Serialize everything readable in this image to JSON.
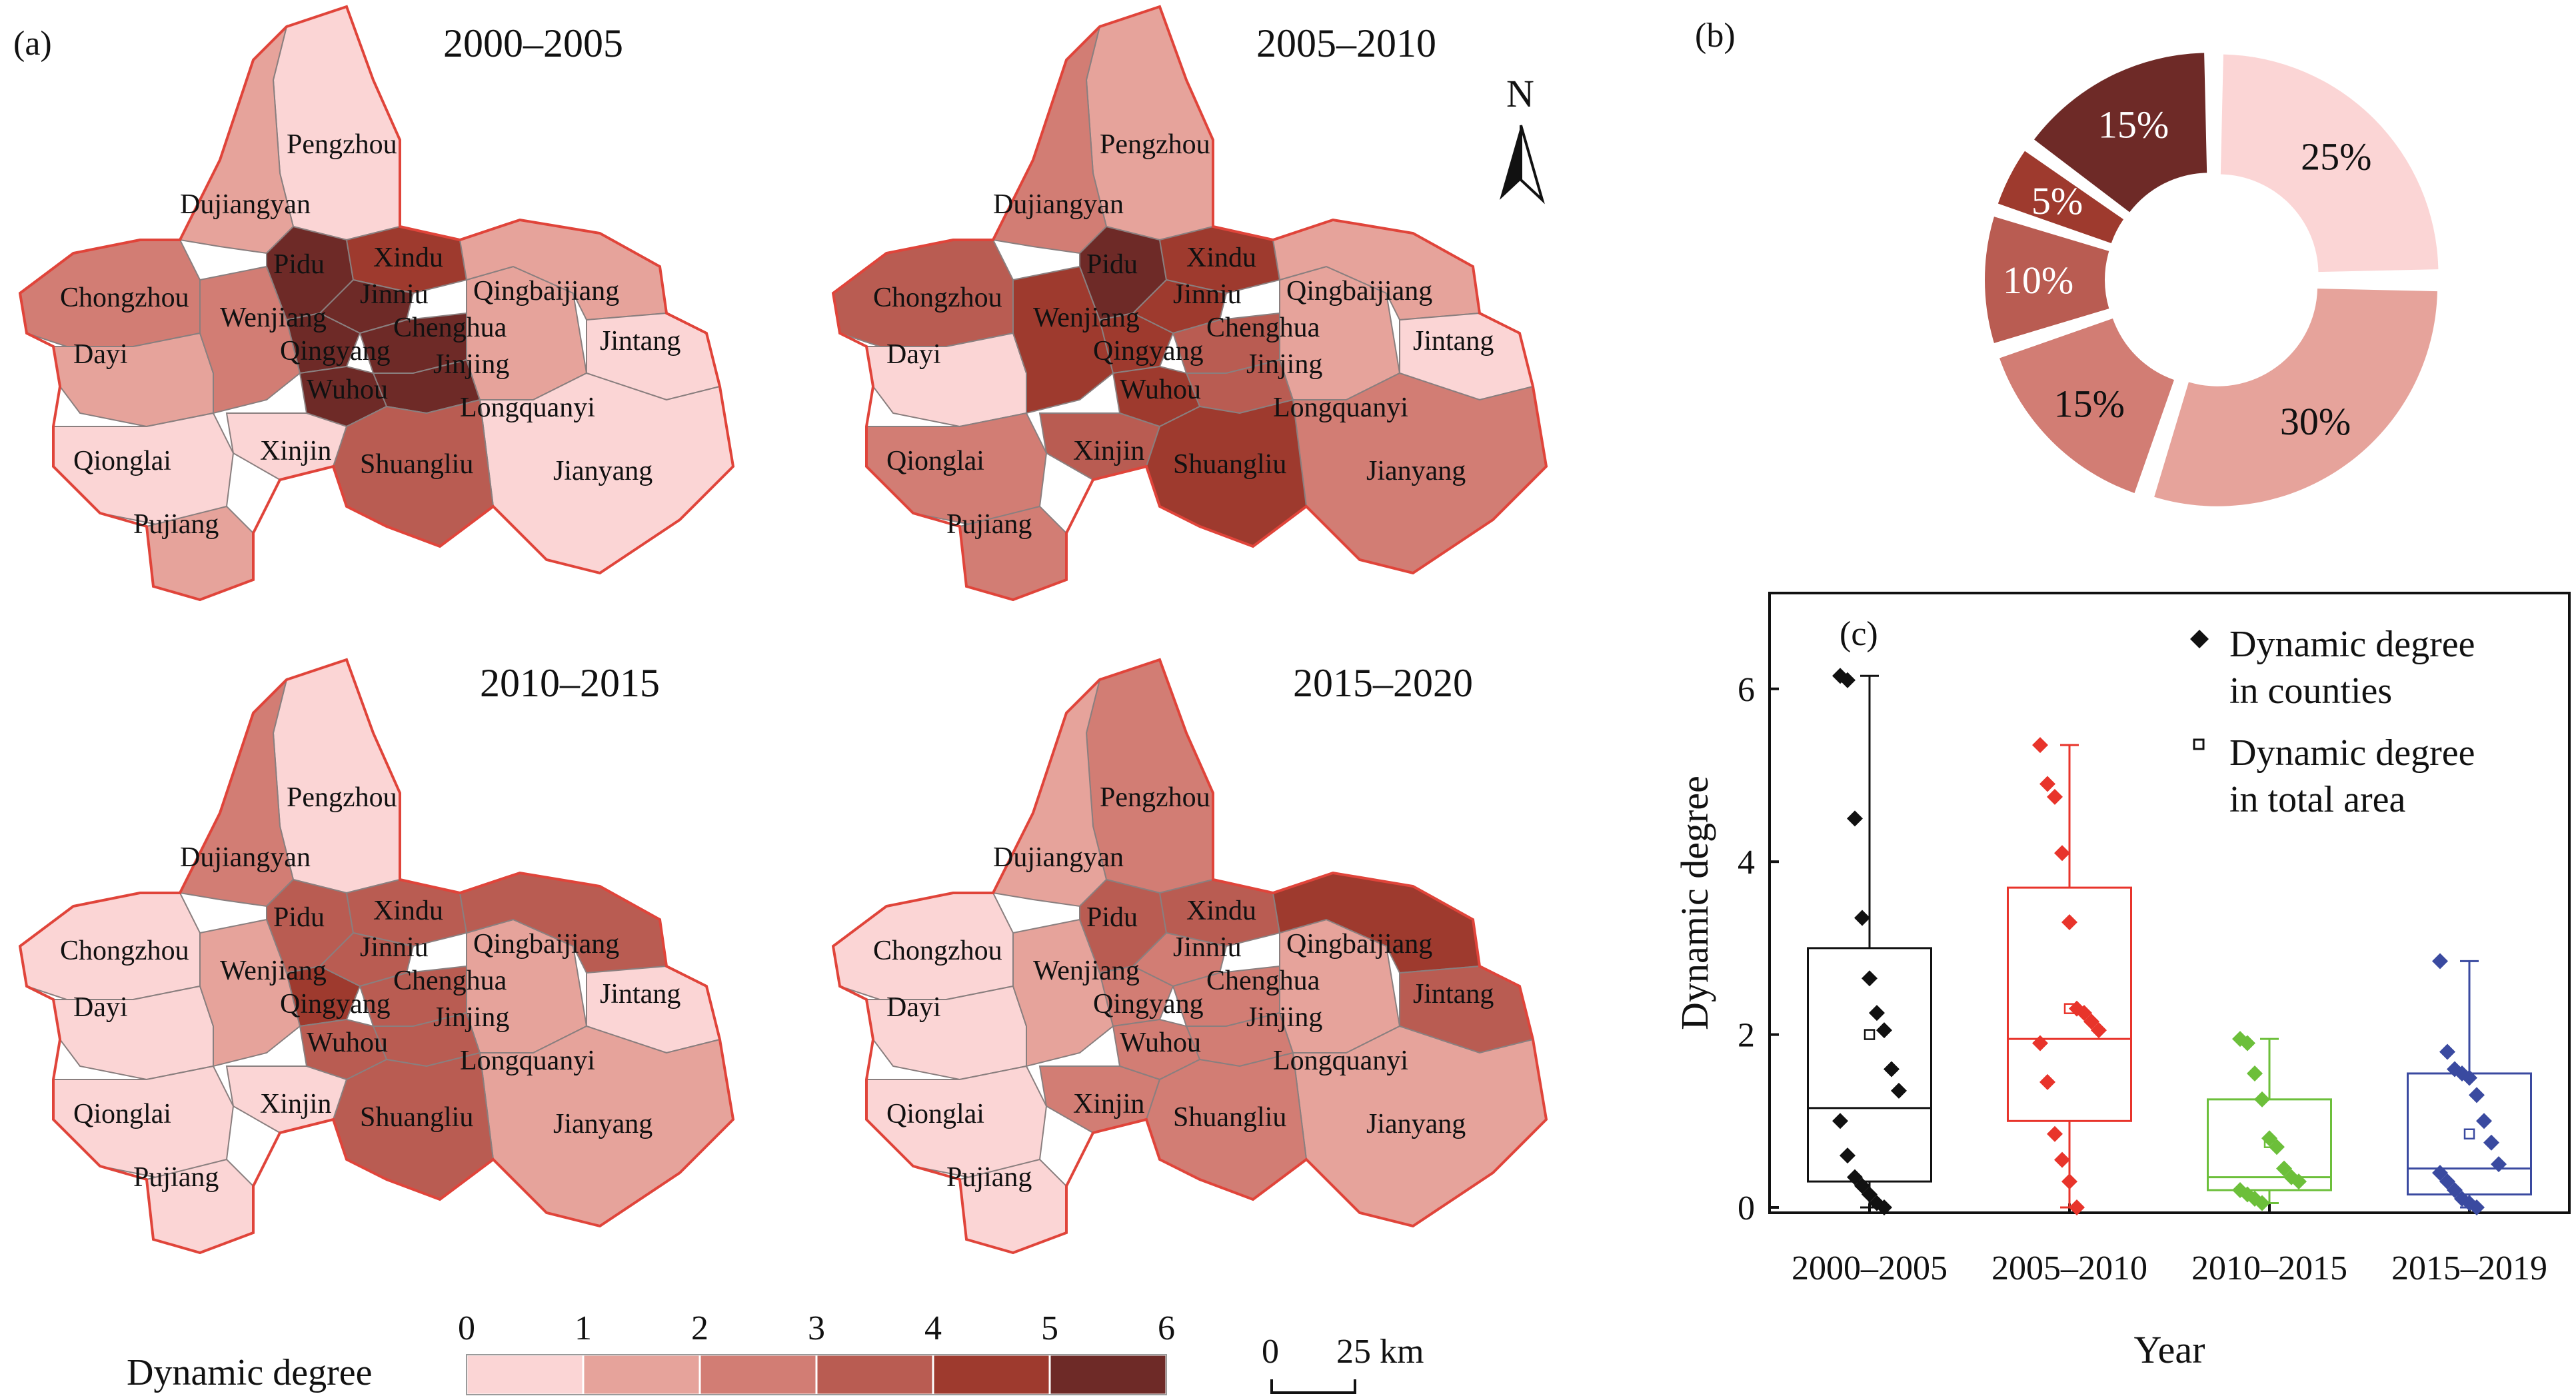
{
  "panel_a": {
    "label": "(a)",
    "maps": [
      {
        "title": "2000–2005",
        "classes": {
          "Pengzhou": 0,
          "Dujiangyan": 1,
          "Chongzhou": 2,
          "Dayi": 1,
          "Qionglai": 0,
          "Pujiang": 1,
          "Xinjin": 0,
          "Shuangliu": 3,
          "Wenjiang": 2,
          "Pidu": 5,
          "Xindu": 4,
          "Jinniu": 5,
          "Qingyang": 5,
          "Chenghua": 5,
          "Jinjing": 5,
          "Wuhou": 5,
          "Longquanyi": 1,
          "Qingbaijiang": 1,
          "Jintang": 0,
          "Jianyang": 0
        }
      },
      {
        "title": "2005–2010",
        "classes": {
          "Pengzhou": 1,
          "Dujiangyan": 2,
          "Chongzhou": 3,
          "Dayi": 0,
          "Qionglai": 2,
          "Pujiang": 2,
          "Xinjin": 3,
          "Shuangliu": 4,
          "Wenjiang": 4,
          "Pidu": 5,
          "Xindu": 4,
          "Jinniu": 4,
          "Qingyang": 4,
          "Chenghua": 3,
          "Jinjing": 3,
          "Wuhou": 4,
          "Longquanyi": 1,
          "Qingbaijiang": 1,
          "Jintang": 0,
          "Jianyang": 2
        }
      },
      {
        "title": "2010–2015",
        "classes": {
          "Pengzhou": 0,
          "Dujiangyan": 2,
          "Chongzhou": 0,
          "Dayi": 0,
          "Qionglai": 0,
          "Pujiang": 0,
          "Xinjin": 0,
          "Shuangliu": 3,
          "Wenjiang": 1,
          "Pidu": 3,
          "Xindu": 3,
          "Jinniu": 3,
          "Qingyang": 4,
          "Chenghua": 3,
          "Jinjing": 3,
          "Wuhou": 3,
          "Longquanyi": 1,
          "Qingbaijiang": 3,
          "Jintang": 0,
          "Jianyang": 1
        }
      },
      {
        "title": "2015–2020",
        "classes": {
          "Pengzhou": 2,
          "Dujiangyan": 1,
          "Chongzhou": 0,
          "Dayi": 0,
          "Qionglai": 0,
          "Pujiang": 0,
          "Xinjin": 2,
          "Shuangliu": 2,
          "Wenjiang": 1,
          "Pidu": 3,
          "Xindu": 3,
          "Jinniu": 2,
          "Qingyang": 2,
          "Chenghua": 2,
          "Jinjing": 2,
          "Wuhou": 2,
          "Longquanyi": 1,
          "Qingbaijiang": 4,
          "Jintang": 3,
          "Jianyang": 1
        }
      }
    ],
    "district_labels": [
      "Pengzhou",
      "Dujiangyan",
      "Pidu",
      "Xindu",
      "Chongzhou",
      "Jinniu",
      "Qingbaijiang",
      "Wenjiang",
      "Chenghua",
      "Jintang",
      "Dayi",
      "Qingyang",
      "Jinjing",
      "Wuhou",
      "Longquanyi",
      "Qionglai",
      "Xinjin",
      "Shuangliu",
      "Jianyang",
      "Pujiang"
    ],
    "north_arrow": "N",
    "legend": {
      "title": "Dynamic degree",
      "ticks": [
        "0",
        "1",
        "2",
        "3",
        "4",
        "5",
        "6"
      ]
    },
    "scale_bar": {
      "zero": "0",
      "label": "25 km"
    },
    "class_colors": [
      "#fbd5d5",
      "#e6a39b",
      "#d27d74",
      "#b95c52",
      "#9e3a2e",
      "#6e2a27"
    ]
  },
  "panel_b": {
    "label": "(b)",
    "slices": [
      {
        "label": "25%",
        "value": 25,
        "color": "#fbd5d5"
      },
      {
        "label": "30%",
        "value": 30,
        "color": "#e6a39b"
      },
      {
        "label": "15%",
        "value": 15,
        "color": "#d27d74"
      },
      {
        "label": "10%",
        "value": 10,
        "color": "#b95c52"
      },
      {
        "label": "5%",
        "value": 5,
        "color": "#9e3a2e"
      },
      {
        "label": "15%",
        "value": 15,
        "color": "#6e2a27"
      }
    ]
  },
  "chart_data": {
    "type": "box",
    "label": "(c)",
    "xlabel": "Year",
    "ylabel": "Dynamic degree",
    "ylim": [
      0,
      6.8
    ],
    "yticks": [
      "0",
      "2",
      "4",
      "6"
    ],
    "categories": [
      "2000–2005",
      "2005–2010",
      "2010–2015",
      "2015–2019"
    ],
    "series": [
      {
        "name": "2000–2005",
        "color": "#111111",
        "q1": 0.3,
        "median": 1.15,
        "q3": 3.0,
        "whisker_low": 0.0,
        "whisker_high": 6.15,
        "total_area": 2.0,
        "points": [
          6.15,
          6.1,
          4.5,
          3.35,
          2.65,
          2.25,
          2.05,
          1.6,
          1.35,
          1.0,
          0.6,
          0.35,
          0.25,
          0.15,
          0.05,
          0.0
        ]
      },
      {
        "name": "2005–2010",
        "color": "#e8342b",
        "q1": 1.0,
        "median": 1.95,
        "q3": 3.7,
        "whisker_low": 0.0,
        "whisker_high": 5.35,
        "total_area": 2.3,
        "points": [
          5.35,
          4.9,
          4.75,
          4.1,
          3.3,
          2.3,
          2.25,
          2.15,
          2.05,
          1.9,
          1.45,
          0.85,
          0.55,
          0.3,
          0.0
        ]
      },
      {
        "name": "2010–2015",
        "color": "#6cbf3a",
        "q1": 0.2,
        "median": 0.35,
        "q3": 1.25,
        "whisker_low": 0.05,
        "whisker_high": 1.95,
        "total_area": 0.75,
        "points": [
          1.95,
          1.9,
          1.55,
          1.25,
          0.8,
          0.7,
          0.45,
          0.35,
          0.3,
          0.2,
          0.15,
          0.1,
          0.05
        ]
      },
      {
        "name": "2015–2019",
        "color": "#3a4aa0",
        "q1": 0.15,
        "median": 0.45,
        "q3": 1.55,
        "whisker_low": 0.0,
        "whisker_high": 2.85,
        "total_area": 0.85,
        "points": [
          2.85,
          1.8,
          1.6,
          1.55,
          1.5,
          1.3,
          1.0,
          0.75,
          0.5,
          0.4,
          0.3,
          0.2,
          0.1,
          0.05,
          0.0
        ]
      }
    ],
    "legend": [
      {
        "line1": "Dynamic degree",
        "line2": "in counties",
        "marker": "diamond"
      },
      {
        "line1": "Dynamic degree",
        "line2": "in total area",
        "marker": "square"
      }
    ]
  }
}
